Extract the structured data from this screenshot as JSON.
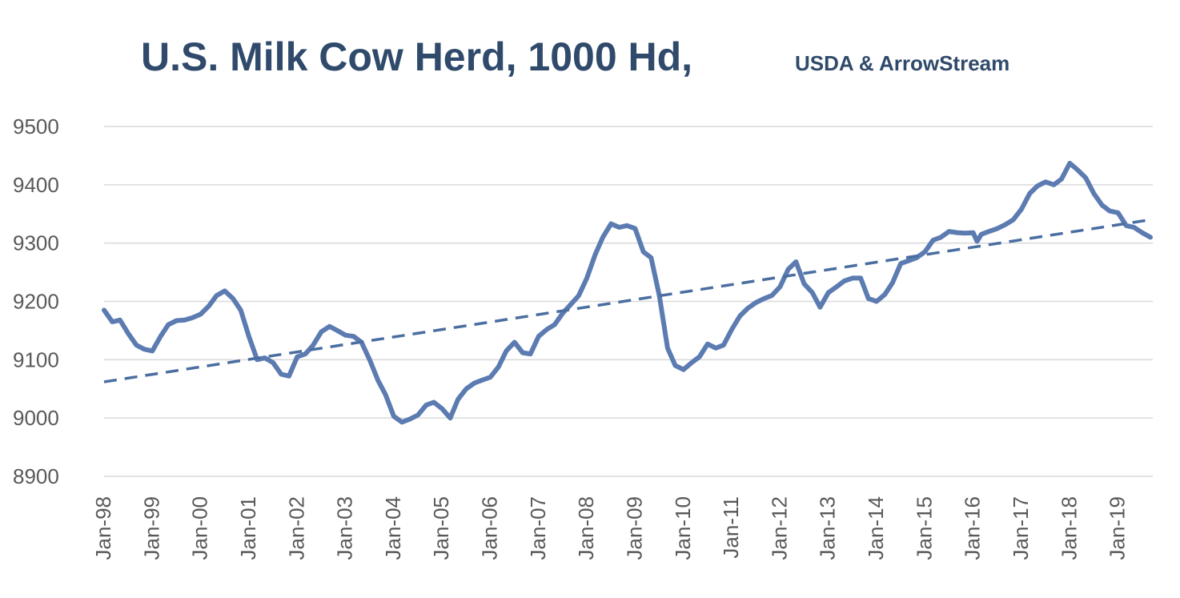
{
  "chart_data": {
    "type": "line",
    "title": "U.S. Milk Cow Herd, 1000 Hd,",
    "subtitle": "USDA & ArrowStream",
    "xlabel": "",
    "ylabel": "",
    "ylim": [
      8900,
      9500
    ],
    "yticks": [
      8900,
      9000,
      9100,
      9200,
      9300,
      9400,
      9500
    ],
    "yticks_labels": [
      "8900",
      "9000",
      "9100",
      "9200",
      "9300",
      "9400",
      "9500"
    ],
    "x_tick_labels": [
      "Jan-98",
      "Jan-99",
      "Jan-00",
      "Jan-01",
      "Jan-02",
      "Jan-03",
      "Jan-04",
      "Jan-05",
      "Jan-06",
      "Jan-07",
      "Jan-08",
      "Jan-09",
      "Jan-10",
      "Jan-11",
      "Jan-12",
      "Jan-13",
      "Jan-14",
      "Jan-15",
      "Jan-16",
      "Jan-17",
      "Jan-18",
      "Jan-19"
    ],
    "x_range": [
      "Jan-98",
      "Sep-19"
    ],
    "grid": true,
    "colors": {
      "series": "#5b7bb1",
      "trend": "#4a6ea0",
      "grid": "#d9d9d9",
      "title": "#2f4a6b",
      "ticks": "#595959"
    },
    "series": [
      {
        "style": "solid",
        "points": [
          [
            1998.0,
            9185
          ],
          [
            1998.17,
            9165
          ],
          [
            1998.33,
            9168
          ],
          [
            1998.5,
            9145
          ],
          [
            1998.67,
            9125
          ],
          [
            1998.83,
            9118
          ],
          [
            1999.0,
            9115
          ],
          [
            1999.17,
            9140
          ],
          [
            1999.33,
            9160
          ],
          [
            1999.5,
            9167
          ],
          [
            1999.67,
            9168
          ],
          [
            1999.83,
            9172
          ],
          [
            2000.0,
            9178
          ],
          [
            2000.17,
            9192
          ],
          [
            2000.33,
            9210
          ],
          [
            2000.5,
            9218
          ],
          [
            2000.67,
            9205
          ],
          [
            2000.83,
            9185
          ],
          [
            2001.0,
            9140
          ],
          [
            2001.17,
            9100
          ],
          [
            2001.33,
            9103
          ],
          [
            2001.5,
            9095
          ],
          [
            2001.67,
            9075
          ],
          [
            2001.83,
            9072
          ],
          [
            2002.0,
            9105
          ],
          [
            2002.17,
            9110
          ],
          [
            2002.33,
            9125
          ],
          [
            2002.5,
            9148
          ],
          [
            2002.67,
            9157
          ],
          [
            2002.83,
            9150
          ],
          [
            2003.0,
            9142
          ],
          [
            2003.17,
            9140
          ],
          [
            2003.33,
            9130
          ],
          [
            2003.5,
            9100
          ],
          [
            2003.67,
            9065
          ],
          [
            2003.83,
            9040
          ],
          [
            2004.0,
            9003
          ],
          [
            2004.17,
            8993
          ],
          [
            2004.33,
            8998
          ],
          [
            2004.5,
            9005
          ],
          [
            2004.67,
            9022
          ],
          [
            2004.83,
            9027
          ],
          [
            2005.0,
            9016
          ],
          [
            2005.17,
            9000
          ],
          [
            2005.33,
            9032
          ],
          [
            2005.5,
            9050
          ],
          [
            2005.67,
            9060
          ],
          [
            2005.83,
            9065
          ],
          [
            2006.0,
            9070
          ],
          [
            2006.17,
            9088
          ],
          [
            2006.33,
            9115
          ],
          [
            2006.5,
            9130
          ],
          [
            2006.67,
            9112
          ],
          [
            2006.83,
            9110
          ],
          [
            2007.0,
            9140
          ],
          [
            2007.17,
            9152
          ],
          [
            2007.33,
            9160
          ],
          [
            2007.5,
            9180
          ],
          [
            2007.67,
            9195
          ],
          [
            2007.83,
            9210
          ],
          [
            2008.0,
            9240
          ],
          [
            2008.17,
            9280
          ],
          [
            2008.33,
            9310
          ],
          [
            2008.5,
            9333
          ],
          [
            2008.67,
            9327
          ],
          [
            2008.83,
            9330
          ],
          [
            2009.0,
            9325
          ],
          [
            2009.17,
            9285
          ],
          [
            2009.33,
            9275
          ],
          [
            2009.5,
            9210
          ],
          [
            2009.67,
            9120
          ],
          [
            2009.83,
            9090
          ],
          [
            2010.0,
            9083
          ],
          [
            2010.17,
            9095
          ],
          [
            2010.33,
            9105
          ],
          [
            2010.5,
            9127
          ],
          [
            2010.67,
            9120
          ],
          [
            2010.83,
            9125
          ],
          [
            2011.0,
            9152
          ],
          [
            2011.17,
            9175
          ],
          [
            2011.33,
            9188
          ],
          [
            2011.5,
            9198
          ],
          [
            2011.67,
            9205
          ],
          [
            2011.83,
            9210
          ],
          [
            2012.0,
            9225
          ],
          [
            2012.17,
            9255
          ],
          [
            2012.33,
            9268
          ],
          [
            2012.5,
            9230
          ],
          [
            2012.67,
            9215
          ],
          [
            2012.83,
            9190
          ],
          [
            2013.0,
            9215
          ],
          [
            2013.17,
            9225
          ],
          [
            2013.33,
            9235
          ],
          [
            2013.5,
            9240
          ],
          [
            2013.67,
            9240
          ],
          [
            2013.83,
            9205
          ],
          [
            2014.0,
            9200
          ],
          [
            2014.17,
            9212
          ],
          [
            2014.33,
            9232
          ],
          [
            2014.5,
            9265
          ],
          [
            2014.67,
            9270
          ],
          [
            2014.83,
            9275
          ],
          [
            2015.0,
            9285
          ],
          [
            2015.17,
            9305
          ],
          [
            2015.33,
            9310
          ],
          [
            2015.5,
            9320
          ],
          [
            2015.67,
            9318
          ],
          [
            2015.83,
            9317
          ],
          [
            2016.0,
            9318
          ],
          [
            2016.08,
            9303
          ],
          [
            2016.17,
            9315
          ],
          [
            2016.33,
            9320
          ],
          [
            2016.5,
            9325
          ],
          [
            2016.67,
            9332
          ],
          [
            2016.83,
            9340
          ],
          [
            2017.0,
            9358
          ],
          [
            2017.17,
            9385
          ],
          [
            2017.33,
            9398
          ],
          [
            2017.5,
            9405
          ],
          [
            2017.67,
            9400
          ],
          [
            2017.83,
            9410
          ],
          [
            2018.0,
            9437
          ],
          [
            2018.17,
            9425
          ],
          [
            2018.33,
            9412
          ],
          [
            2018.5,
            9385
          ],
          [
            2018.67,
            9365
          ],
          [
            2018.83,
            9355
          ],
          [
            2019.0,
            9352
          ],
          [
            2019.17,
            9330
          ],
          [
            2019.33,
            9327
          ],
          [
            2019.5,
            9318
          ],
          [
            2019.67,
            9310
          ]
        ]
      },
      {
        "style": "dashed",
        "points": [
          [
            1998.0,
            9062
          ],
          [
            2019.67,
            9340
          ]
        ]
      }
    ]
  }
}
